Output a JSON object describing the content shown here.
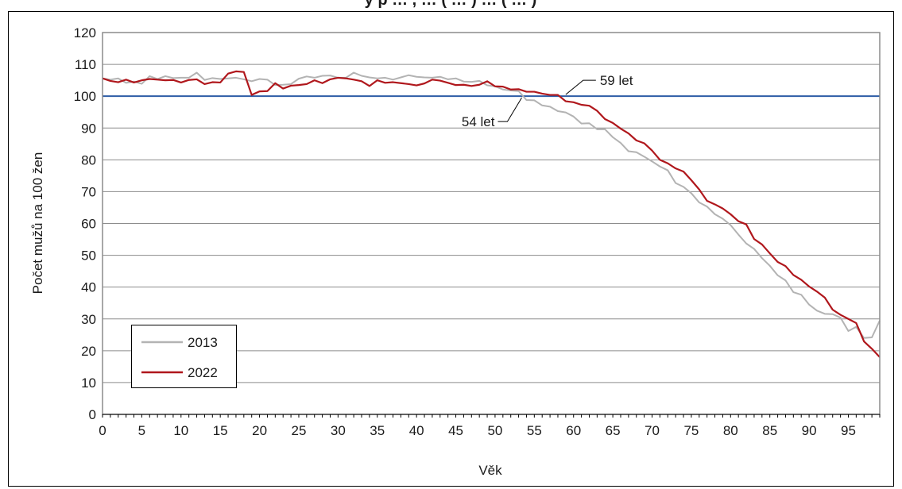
{
  "chart_data": {
    "type": "line",
    "title": "y p … , … ( … ) … ( … )",
    "xlabel": "Věk",
    "ylabel": "Počet mužů na 100 žen",
    "xlim": [
      0,
      99
    ],
    "ylim": [
      0,
      120
    ],
    "x_ticks": [
      "0",
      "5",
      "10",
      "15",
      "20",
      "25",
      "30",
      "35",
      "40",
      "45",
      "50",
      "55",
      "60",
      "65",
      "70",
      "75",
      "80",
      "85",
      "90",
      "95"
    ],
    "y_ticks": [
      "0",
      "10",
      "20",
      "30",
      "40",
      "50",
      "60",
      "70",
      "80",
      "90",
      "100",
      "110",
      "120"
    ],
    "grid": true,
    "legend_position": "bottom-left",
    "reference_line": {
      "y": 100,
      "color": "#2e5da6"
    },
    "annotations": [
      {
        "text": "59 let",
        "x": 59,
        "y": 100
      },
      {
        "text": "54 let",
        "x": 54,
        "y": 100
      }
    ],
    "series": [
      {
        "name": "2013",
        "color": "#b3b3b3",
        "values": [
          105.6,
          105.2,
          105.6,
          104.2,
          104.6,
          103.9,
          106.3,
          105.4,
          106.3,
          105.7,
          105.8,
          105.8,
          107.4,
          105.1,
          105.7,
          105.4,
          105.6,
          105.8,
          105.3,
          104.7,
          105.4,
          105.2,
          103.5,
          103.6,
          103.8,
          105.5,
          106.2,
          105.8,
          106.4,
          106.5,
          105.8,
          105.8,
          107.4,
          106.4,
          105.9,
          105.6,
          105.8,
          105.2,
          105.9,
          106.6,
          106.1,
          105.9,
          105.8,
          106.1,
          105.3,
          105.6,
          104.6,
          104.5,
          104.8,
          103.4,
          103.1,
          102.1,
          101.8,
          101.6,
          98.8,
          98.7,
          97.1,
          96.7,
          95.3,
          94.9,
          93.6,
          91.4,
          91.5,
          89.6,
          89.6,
          87.1,
          85.3,
          82.7,
          82.4,
          81.0,
          79.5,
          77.9,
          76.7,
          72.7,
          71.5,
          69.5,
          66.6,
          65.3,
          62.9,
          61.5,
          59.5,
          56.5,
          53.7,
          52.0,
          49.1,
          46.7,
          43.7,
          42.1,
          38.4,
          37.6,
          34.5,
          32.6,
          31.6,
          31.5,
          30.4,
          26.2,
          27.5,
          24.0,
          24.2,
          29.5
        ]
      },
      {
        "name": "2022",
        "color": "#b0171c",
        "values": [
          105.6,
          104.8,
          104.4,
          105.2,
          104.3,
          105.0,
          105.4,
          105.2,
          105.0,
          105.1,
          104.3,
          105.1,
          105.3,
          103.8,
          104.4,
          104.3,
          107.1,
          107.8,
          107.6,
          100.4,
          101.5,
          101.6,
          104.1,
          102.4,
          103.3,
          103.5,
          103.8,
          105.0,
          104.1,
          105.3,
          105.8,
          105.6,
          105.2,
          104.7,
          103.2,
          105.0,
          104.2,
          104.4,
          104.1,
          103.8,
          103.4,
          104.0,
          105.2,
          104.9,
          104.2,
          103.5,
          103.6,
          103.2,
          103.6,
          104.7,
          103.1,
          103.0,
          102.1,
          102.2,
          101.4,
          101.4,
          100.8,
          100.4,
          100.4,
          98.4,
          98.1,
          97.3,
          97.0,
          95.4,
          92.8,
          91.6,
          89.8,
          88.3,
          86.1,
          85.2,
          82.9,
          80.0,
          78.9,
          77.3,
          76.3,
          73.6,
          70.7,
          67.1,
          66.0,
          64.7,
          62.9,
          60.7,
          59.7,
          55.1,
          53.4,
          50.6,
          47.9,
          46.6,
          43.8,
          42.3,
          40.2,
          38.6,
          36.7,
          32.9,
          31.3,
          30.0,
          28.7,
          22.9,
          20.6,
          18.0
        ]
      }
    ]
  }
}
